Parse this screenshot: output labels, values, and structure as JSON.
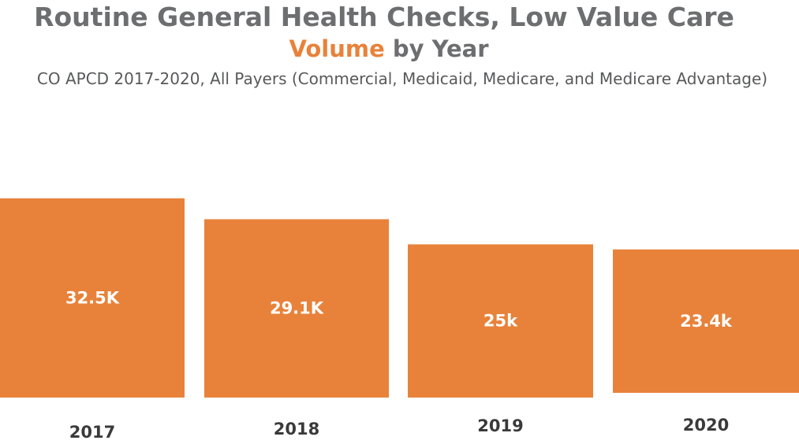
{
  "title": "Routine General Health Checks, Low Value Care",
  "subtitle": {
    "accent": "Volume",
    "rest": " by Year"
  },
  "caption": "CO APCD 2017-2020,  All Payers (Commercial, Medicaid, Medicare, and Medicare Advantage)",
  "colors": {
    "bar": "#e8823a",
    "title": "#6d6e70",
    "accent": "#e8823a"
  },
  "chart_data": {
    "type": "bar",
    "title": "Routine General Health Checks, Low Value Care",
    "categories": [
      "2017",
      "2018",
      "2019",
      "2020"
    ],
    "values": [
      32500,
      29100,
      25000,
      23400
    ],
    "data_labels": [
      "32.5K",
      "29.1K",
      "25k",
      "23.4k"
    ],
    "xlabel": "",
    "ylabel": "",
    "grid": false
  }
}
